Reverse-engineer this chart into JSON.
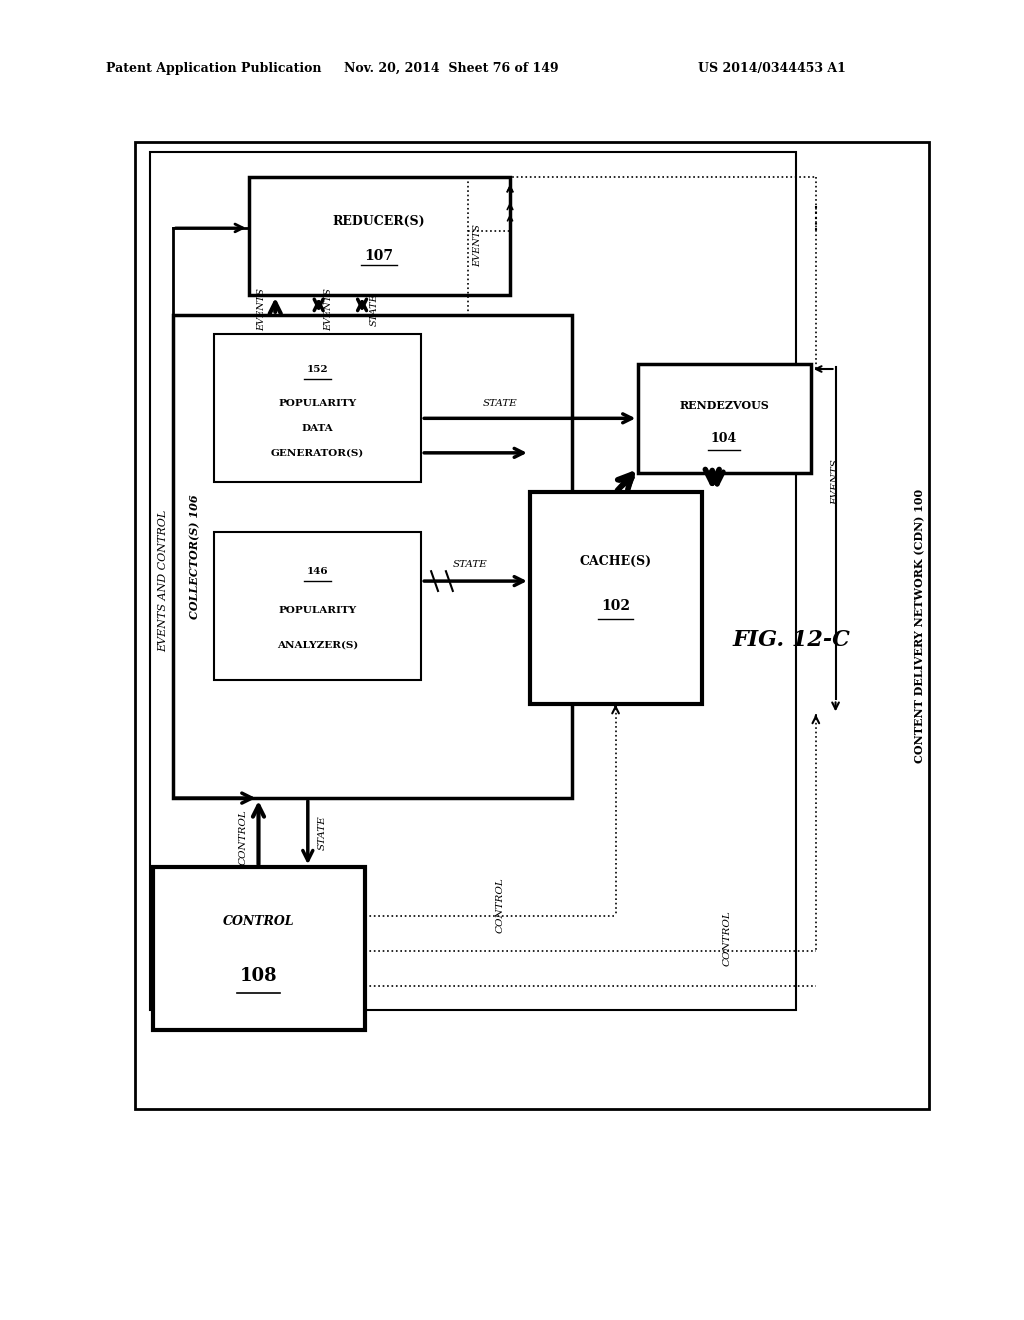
{
  "header_left": "Patent Application Publication",
  "header_mid": "Nov. 20, 2014  Sheet 76 of 149",
  "header_right": "US 2014/0344453 A1",
  "fig_label": "FIG. 12-C",
  "bg_color": "#ffffff"
}
